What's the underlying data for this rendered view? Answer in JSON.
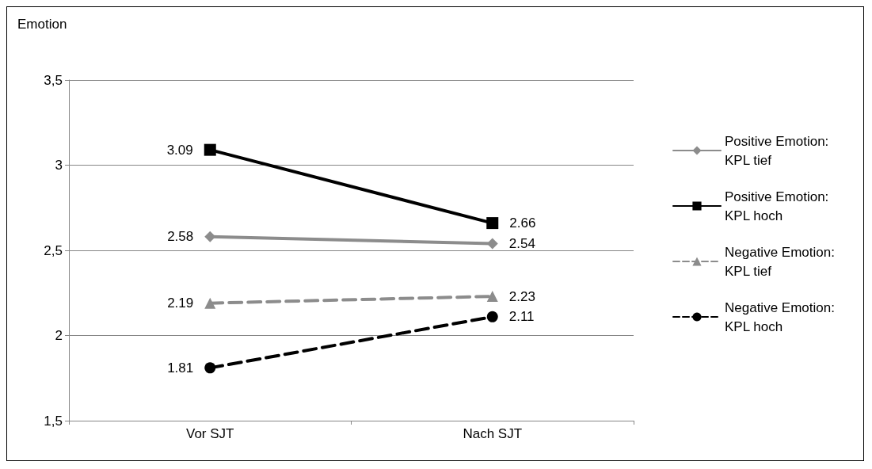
{
  "chart_data": {
    "type": "line",
    "ylabel": "Emotion",
    "categories": [
      "Vor SJT",
      "Nach SJT"
    ],
    "series": [
      {
        "name": "Positive Emotion: KPL tief",
        "color": "#8c8c8c",
        "marker": "diamond",
        "line_style": "solid",
        "values": [
          2.58,
          2.54
        ]
      },
      {
        "name": "Positive Emotion: KPL hoch",
        "color": "#000000",
        "marker": "square",
        "line_style": "solid",
        "values": [
          3.09,
          2.66
        ]
      },
      {
        "name": "Negative Emotion: KPL tief",
        "color": "#8c8c8c",
        "marker": "triangle",
        "line_style": "dashed",
        "values": [
          2.19,
          2.23
        ]
      },
      {
        "name": "Negative Emotion: KPL hoch",
        "color": "#000000",
        "marker": "circle",
        "line_style": "dashed",
        "values": [
          1.81,
          2.11
        ]
      }
    ],
    "ylim": [
      1.5,
      3.5
    ],
    "yticks": [
      {
        "value": 1.5,
        "label": "1,5"
      },
      {
        "value": 2,
        "label": "2"
      },
      {
        "value": 2.5,
        "label": "2,5"
      },
      {
        "value": 3,
        "label": "3"
      },
      {
        "value": 3.5,
        "label": "3,5"
      }
    ],
    "grid": "y",
    "legend": "right",
    "data_labels": true
  }
}
